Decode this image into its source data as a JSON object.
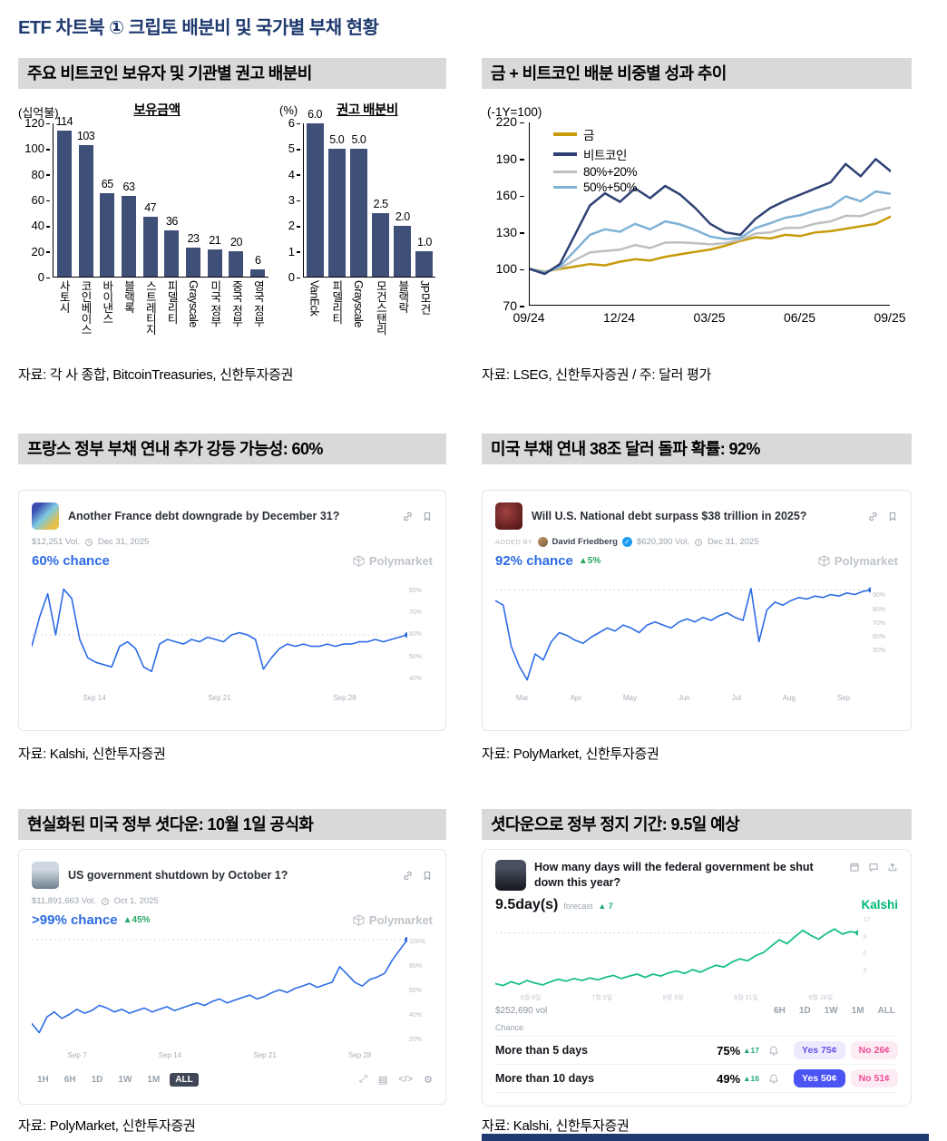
{
  "page": {
    "title": "ETF 차트북 ① 크립토 배분비 및 국가별 부채 현황"
  },
  "icons": {
    "check": "✓",
    "tools": [
      "⤢",
      "▤",
      "</>",
      "⚙"
    ]
  },
  "panel1": {
    "header": "주요 비트코인 보유자 및 기관별 권고 배분비",
    "source": "자료: 각 사 종합, BitcoinTreasuries, 신한투자증권"
  },
  "panel2": {
    "header": "금 + 비트코인 배분 비중별 성과 추이",
    "source": "자료: LSEG, 신한투자증권 / 주: 달러 평가"
  },
  "panel3": {
    "header": "프랑스 정부 부채 연내 추가 강등 가능성: 60%",
    "source": "자료: Kalshi, 신한투자증권",
    "market": {
      "title": "Another France debt downgrade by December 31?",
      "volume": "$12,251 Vol.",
      "end_date": "Dec 31, 2025",
      "chance": "60% chance",
      "brand": "Polymarket"
    }
  },
  "panel4": {
    "header": "미국 부채 연내 38조 달러 돌파 확률: 92%",
    "source": "자료: PolyMarket, 신한투자증권",
    "market": {
      "added_by": "ADDED BY",
      "author": "David Friedberg",
      "title": "Will U.S. National debt surpass $38 trillion in 2025?",
      "volume": "$620,390 Vol.",
      "end_date": "Dec 31, 2025",
      "chance": "92% chance",
      "delta": "▲5%",
      "brand": "Polymarket"
    }
  },
  "panel5": {
    "header": "현실화된 미국 정부 셧다운: 10월 1일 공식화",
    "source": "자료: PolyMarket, 신한투자증권",
    "market": {
      "title": "US government shutdown by October 1?",
      "volume": "$11,891,663 Vol.",
      "end_date": "Oct 1, 2025",
      "chance": ">99% chance",
      "delta": "▲45%",
      "brand": "Polymarket",
      "ranges": [
        "1H",
        "6H",
        "1D",
        "1W",
        "1M",
        "ALL"
      ],
      "active_range": "ALL"
    }
  },
  "panel6": {
    "header": "셧다운으로 정부 정지 기간: 9.5일 예상",
    "source": "자료: Kalshi, 신한투자증권",
    "market": {
      "title": "How many days will the federal government be shut down this year?",
      "forecast_value": "9.5day(s)",
      "forecast_label": "forecast",
      "forecast_delta": "▲ 7",
      "brand": "Kalshi",
      "volume": "$252,690 vol",
      "ranges": [
        "6H",
        "1D",
        "1W",
        "1M",
        "ALL"
      ],
      "active_range": "ALL",
      "chance_label": "Chance",
      "outcomes": [
        {
          "name": "More than 5 days",
          "prob": "75%",
          "delta": "▲17",
          "yes": "Yes 75¢",
          "no": "No 26¢",
          "yes_selected": false
        },
        {
          "name": "More than 10 days",
          "prob": "49%",
          "delta": "▲16",
          "yes": "Yes 50¢",
          "no": "No 51¢",
          "yes_selected": true
        }
      ]
    }
  },
  "chart_data": [
    {
      "id": "holdings",
      "type": "bar",
      "title": "보유금액",
      "unit": "(십억불)",
      "categories": [
        "사토시",
        "코인베이스",
        "바이낸스",
        "블랙록",
        "스트레티지",
        "피델리티",
        "Grayscale",
        "미국 정부",
        "중국 정부",
        "영국 정부"
      ],
      "values": [
        114,
        103,
        65,
        63,
        47,
        36,
        23,
        21,
        20,
        6
      ],
      "labels": [
        "114",
        "103",
        "65",
        "63",
        "47",
        "36",
        "23",
        "21",
        "20",
        "6"
      ],
      "yticks": [
        120,
        100,
        80,
        60,
        40,
        20,
        0
      ],
      "ylim": [
        0,
        120
      ],
      "bar_color": "#3f5078"
    },
    {
      "id": "reco",
      "type": "bar",
      "title": "권고 배분비",
      "unit": "(%)",
      "categories": [
        "VanEck",
        "피델리티",
        "Grayscale",
        "모건스탠리",
        "블랙락",
        "JP모건"
      ],
      "values": [
        6.0,
        5.0,
        5.0,
        2.5,
        2.0,
        1.0
      ],
      "labels": [
        "6.0",
        "5.0",
        "5.0",
        "2.5",
        "2.0",
        "1.0"
      ],
      "yticks": [
        6,
        5,
        4,
        3,
        2,
        1,
        0
      ],
      "ylim": [
        0,
        6
      ],
      "bar_color": "#3f5078"
    },
    {
      "id": "performance",
      "type": "line",
      "title": "금 + 비트코인 배분 비중별 성과 추이",
      "unit": "(-1Y=100)",
      "ylim": [
        70,
        220
      ],
      "yticks": [
        220,
        190,
        160,
        130,
        100,
        70
      ],
      "xticks": [
        "09/24",
        "12/24",
        "03/25",
        "06/25",
        "09/25"
      ],
      "draw_order": [
        0,
        2,
        3,
        1
      ],
      "series": [
        {
          "name": "금",
          "color": "#c79a0a",
          "values": [
            100,
            98,
            100,
            102,
            104,
            103,
            106,
            108,
            107,
            110,
            112,
            114,
            116,
            119,
            123,
            126,
            125,
            128,
            127,
            130,
            131,
            133,
            135,
            137,
            143
          ]
        },
        {
          "name": "비트코인",
          "color": "#2e4174",
          "values": [
            100,
            96,
            104,
            128,
            152,
            162,
            155,
            166,
            158,
            168,
            161,
            150,
            137,
            130,
            128,
            141,
            150,
            156,
            161,
            166,
            171,
            186,
            176,
            190,
            180
          ]
        },
        {
          "name": "80%+20%",
          "color": "#bfbfbf",
          "values": [
            100,
            97.6,
            100.8,
            107.2,
            113.6,
            114.8,
            115.8,
            119.6,
            117.2,
            121.6,
            121.8,
            121.2,
            120.2,
            121.2,
            124,
            129,
            130,
            133.6,
            133.8,
            137.2,
            139,
            143.6,
            143.2,
            147.6,
            150.4
          ]
        },
        {
          "name": "50%+50%",
          "color": "#7fb2d6",
          "values": [
            100,
            97,
            102,
            115,
            128,
            132.5,
            130.5,
            137,
            132.5,
            139,
            136.5,
            132,
            126.5,
            124.5,
            125.5,
            133.5,
            137.5,
            142,
            144,
            148,
            151,
            159.5,
            155.5,
            163.5,
            161.5
          ]
        }
      ]
    },
    {
      "id": "france",
      "type": "line",
      "title": "Another France debt downgrade by December 31?",
      "current": "60%",
      "color": "#2c6be5",
      "ylim": [
        35,
        85
      ],
      "yticks": [
        "80%",
        "70%",
        "60%",
        "50%",
        "40%"
      ],
      "xticks": [
        "Sep 14",
        "Sep 21",
        "Sep 28"
      ],
      "values": [
        55,
        68,
        78,
        60,
        80,
        76,
        58,
        50,
        48,
        47,
        46,
        55,
        57,
        54,
        46,
        44,
        56,
        58,
        57,
        56,
        58,
        57,
        59,
        58,
        57,
        60,
        61,
        60,
        58,
        45,
        50,
        54,
        56,
        55,
        56,
        55,
        55,
        56,
        55,
        56,
        56,
        57,
        57,
        58,
        57,
        58,
        59,
        60
      ]
    },
    {
      "id": "usdebt",
      "type": "line",
      "title": "Will U.S. National debt surpass $38 trillion in 2025?",
      "current": "92%",
      "color": "#2c6be5",
      "ylim": [
        25,
        100
      ],
      "yticks": [
        "90%",
        "80%",
        "70%",
        "60%",
        "50%"
      ],
      "xticks": [
        "Mar",
        "Apr",
        "May",
        "Jun",
        "Jul",
        "Aug",
        "Sep"
      ],
      "values": [
        85,
        82,
        55,
        42,
        33,
        50,
        46,
        58,
        64,
        62,
        59,
        57,
        61,
        64,
        67,
        65,
        69,
        67,
        64,
        69,
        71,
        69,
        67,
        71,
        73,
        71,
        74,
        72,
        75,
        77,
        74,
        72,
        93,
        58,
        79,
        84,
        82,
        85,
        87,
        86,
        88,
        87,
        89,
        88,
        90,
        89,
        91,
        92
      ]
    },
    {
      "id": "shutdown",
      "type": "line",
      "title": "US government shutdown by October 1?",
      "current": ">99%",
      "color": "#2c6be5",
      "ylim": [
        15,
        102
      ],
      "yticks": [
        "100%",
        "80%",
        "60%",
        "40%",
        "20%"
      ],
      "xticks": [
        "Sep 7",
        "Sep 14",
        "Sep 21",
        "Sep 28"
      ],
      "values": [
        35,
        28,
        40,
        44,
        39,
        42,
        46,
        43,
        45,
        49,
        47,
        44,
        46,
        43,
        45,
        47,
        44,
        46,
        48,
        45,
        47,
        49,
        51,
        49,
        52,
        54,
        51,
        53,
        55,
        57,
        54,
        56,
        59,
        61,
        59,
        62,
        64,
        66,
        63,
        65,
        67,
        79,
        73,
        67,
        64,
        69,
        71,
        74,
        84,
        92,
        100
      ]
    },
    {
      "id": "days",
      "type": "line",
      "title": "How many days will the federal government be shut down this year?",
      "current": "9.5",
      "color": "#17bf8c",
      "ylim": [
        0,
        12
      ],
      "yticks": [
        "12",
        "9",
        "6",
        "3"
      ],
      "xticks": [
        "6월 8일",
        "7월 6일",
        "8월 3일",
        "8월 31일",
        "9월 28일"
      ],
      "values": [
        1.5,
        1.2,
        1.8,
        1.4,
        2.0,
        1.6,
        1.3,
        1.8,
        2.2,
        1.9,
        2.3,
        2.0,
        2.4,
        2.1,
        2.5,
        2.8,
        2.3,
        2.7,
        3.0,
        2.5,
        3.0,
        2.7,
        3.2,
        3.5,
        3.1,
        3.7,
        3.3,
        3.9,
        4.4,
        4.1,
        4.9,
        5.4,
        5.1,
        5.9,
        6.4,
        7.4,
        8.4,
        7.8,
        8.9,
        9.9,
        9.1,
        8.5,
        9.4,
        10.1,
        9.3,
        9.7,
        9.5
      ]
    }
  ]
}
